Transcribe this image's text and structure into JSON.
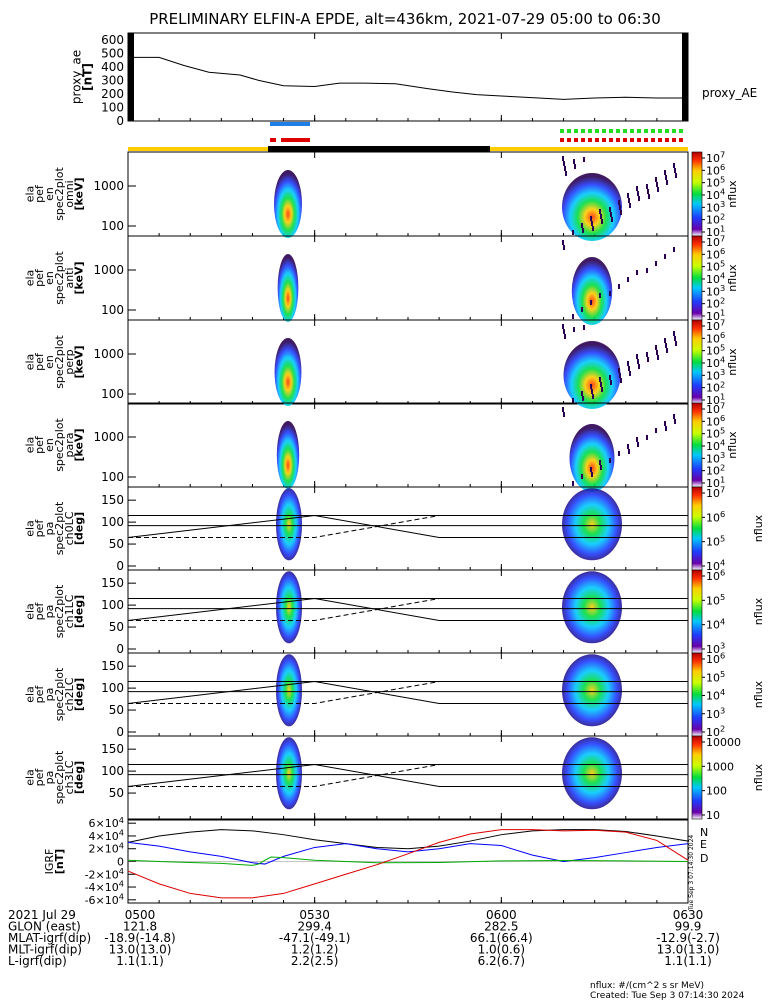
{
  "title": "PRELIMINARY ELFIN-A EPDE, alt=436km, 2021-07-29 05:00 to 06:30",
  "chart_data": [
    {
      "type": "line",
      "panel": "proxy_ae",
      "ylabel": [
        "proxy_ae",
        "[nT]"
      ],
      "yticks": [
        "600",
        "500",
        "400",
        "300",
        "200",
        "100",
        "0"
      ],
      "ylim": [
        0,
        650
      ],
      "xlim_min": [
        0,
        90
      ],
      "series": [
        {
          "name": "proxy_AE",
          "x": [
            0,
            5,
            9,
            13,
            18,
            21,
            25,
            30,
            34,
            38,
            43,
            48,
            52,
            56,
            60,
            66,
            70,
            75,
            80,
            85,
            90
          ],
          "values": [
            470,
            470,
            410,
            360,
            340,
            300,
            260,
            255,
            280,
            280,
            275,
            240,
            215,
            195,
            185,
            170,
            160,
            170,
            175,
            170,
            170
          ]
        }
      ]
    },
    {
      "type": "heatmap",
      "panels": [
        {
          "ylabel": [
            "ela",
            "pef",
            "en",
            "spec2plot",
            "omni",
            "[keV]"
          ],
          "yticks": [
            "1000",
            "100"
          ],
          "cbar_ticks": [
            "10^7",
            "10^6",
            "10^5",
            "10^4",
            "10^3",
            "10^2",
            "10^1"
          ],
          "cbar_label": "nflux"
        },
        {
          "ylabel": [
            "ela",
            "pef",
            "en",
            "spec2plot",
            "anti",
            "[keV]"
          ],
          "yticks": [
            "1000",
            "100"
          ],
          "cbar_ticks": [
            "10^7",
            "10^6",
            "10^5",
            "10^4",
            "10^3",
            "10^2",
            "10^1"
          ],
          "cbar_label": "nflux"
        },
        {
          "ylabel": [
            "ela",
            "pef",
            "en",
            "spec2plot",
            "perp",
            "[keV]"
          ],
          "yticks": [
            "1000",
            "100"
          ],
          "cbar_ticks": [
            "10^7",
            "10^6",
            "10^5",
            "10^4",
            "10^3",
            "10^2",
            "10^1"
          ],
          "cbar_label": "nflux"
        },
        {
          "ylabel": [
            "ela",
            "pef",
            "en",
            "spec2plot",
            "para",
            "[keV]"
          ],
          "yticks": [
            "1000",
            "100"
          ],
          "cbar_ticks": [
            "10^7",
            "10^6",
            "10^5",
            "10^4",
            "10^3",
            "10^2",
            "10^1"
          ],
          "cbar_label": "nflux"
        }
      ]
    },
    {
      "type": "heatmap",
      "panels": [
        {
          "ylabel": [
            "ela",
            "pef",
            "pa",
            "spec2plot",
            "ch0LC",
            "[deg]"
          ],
          "yticks": [
            "150",
            "100",
            "50",
            "0"
          ],
          "cbar_ticks": [
            "10^7",
            "10^6",
            "10^5",
            "10^4"
          ],
          "cbar_label": "nflux"
        },
        {
          "ylabel": [
            "ela",
            "pef",
            "pa",
            "spec2plot",
            "ch1LC",
            "[deg]"
          ],
          "yticks": [
            "150",
            "100",
            "50",
            "0"
          ],
          "cbar_ticks": [
            "10^6",
            "10^5",
            "10^4",
            "10^3"
          ],
          "cbar_label": "nflux"
        },
        {
          "ylabel": [
            "ela",
            "pef",
            "pa",
            "spec2plot",
            "ch2LC",
            "[deg]"
          ],
          "yticks": [
            "150",
            "100",
            "50",
            "0"
          ],
          "cbar_ticks": [
            "10^6",
            "10^5",
            "10^4",
            "10^3",
            "10^2"
          ],
          "cbar_label": "nflux"
        },
        {
          "ylabel": [
            "ela",
            "pef",
            "pa",
            "spec2plot",
            "ch3LC",
            "[deg]"
          ],
          "yticks": [
            "150",
            "100",
            "50"
          ],
          "cbar_ticks": [
            "10000",
            "1000",
            "100",
            "10"
          ],
          "cbar_label": "nflux"
        }
      ]
    },
    {
      "type": "line",
      "panel": "IGRF",
      "ylabel": [
        "IGRF",
        "[nT]"
      ],
      "yticks": [
        "6×10^4",
        "4×10^4",
        "2×10^4",
        "0",
        "-2×10^4",
        "-4×10^4",
        "-6×10^4"
      ],
      "ylim": [
        -65000,
        65000
      ],
      "legend": [
        "N",
        "E",
        "D"
      ],
      "legend_colors": [
        "#0000ff",
        "#00aa00",
        "#dd0000"
      ],
      "series": [
        {
          "name": "black",
          "x": [
            0,
            5,
            10,
            15,
            20,
            25,
            30,
            35,
            40,
            45,
            50,
            55,
            60,
            65,
            70,
            75,
            80,
            85,
            90
          ],
          "values": [
            30000,
            40000,
            46000,
            50000,
            48000,
            42000,
            34000,
            28000,
            22000,
            20000,
            24000,
            32000,
            42000,
            48000,
            50000,
            50000,
            47000,
            40000,
            32000
          ]
        },
        {
          "name": "N",
          "x": [
            0,
            5,
            10,
            15,
            20,
            22,
            25,
            30,
            35,
            40,
            45,
            50,
            55,
            60,
            65,
            70,
            75,
            80,
            85,
            90
          ],
          "values": [
            30000,
            24000,
            15000,
            8000,
            -2000,
            -4000,
            8000,
            22000,
            28000,
            20000,
            15000,
            20000,
            28000,
            25000,
            10000,
            0,
            6000,
            14000,
            22000,
            28000
          ]
        },
        {
          "name": "E",
          "x": [
            0,
            5,
            10,
            15,
            20,
            21,
            22,
            23,
            25,
            30,
            40,
            50,
            60,
            70,
            80,
            90
          ],
          "values": [
            2000,
            0,
            -1500,
            -3000,
            -6000,
            -4000,
            2000,
            7000,
            6000,
            2000,
            -2000,
            -1500,
            1000,
            1500,
            1000,
            0
          ]
        },
        {
          "name": "D",
          "x": [
            0,
            5,
            10,
            15,
            20,
            25,
            30,
            35,
            40,
            45,
            50,
            55,
            60,
            65,
            70,
            75,
            80,
            85,
            90
          ],
          "values": [
            -15000,
            -35000,
            -50000,
            -57000,
            -57000,
            -50000,
            -35000,
            -20000,
            -5000,
            12000,
            30000,
            43000,
            50000,
            50000,
            48000,
            49000,
            46000,
            33000,
            2000
          ]
        }
      ]
    }
  ],
  "x_axis": {
    "tick_labels": [
      "0500",
      "0530",
      "0600",
      "0630"
    ],
    "rows": [
      {
        "label": "2021 Jul 29",
        "values": [
          "0500",
          "0530",
          "0600",
          "0630"
        ]
      },
      {
        "label": "GLON (east)",
        "values": [
          "121.8",
          "299.4",
          "282.5",
          "99.9"
        ]
      },
      {
        "label": "MLAT-igrf(dip)",
        "values": [
          "-18.9(-14.8)",
          "-47.1(-49.1)",
          "66.1(66.4)",
          "-12.9(-2.7)"
        ]
      },
      {
        "label": "MLT-igrf(dip)",
        "values": [
          "13.0(13.0)",
          "1.2(1.2)",
          "1.0(0.6)",
          "13.0(13.0)"
        ]
      },
      {
        "label": "L-igrf(dip)",
        "values": [
          "1.1(1.1)",
          "2.2(2.5)",
          "6.2(6.7)",
          "1.1(1.1)"
        ]
      }
    ]
  },
  "panel_labels": {
    "proxy_ae": "proxy_AE"
  },
  "footer": {
    "units": "nflux: #/(cm^2 s sr MeV)",
    "created": "Created: Tue Sep  3 07:14:30 2024",
    "side_stamp": "Tue Sep  3 07:14:30 2024"
  },
  "colors": {
    "orbit_yellow": "#ffcc00",
    "orbit_black": "#000000",
    "sci_blue": "#1e7fe6",
    "sci_red": "#dd0000",
    "sci_green": "#22dd22"
  }
}
